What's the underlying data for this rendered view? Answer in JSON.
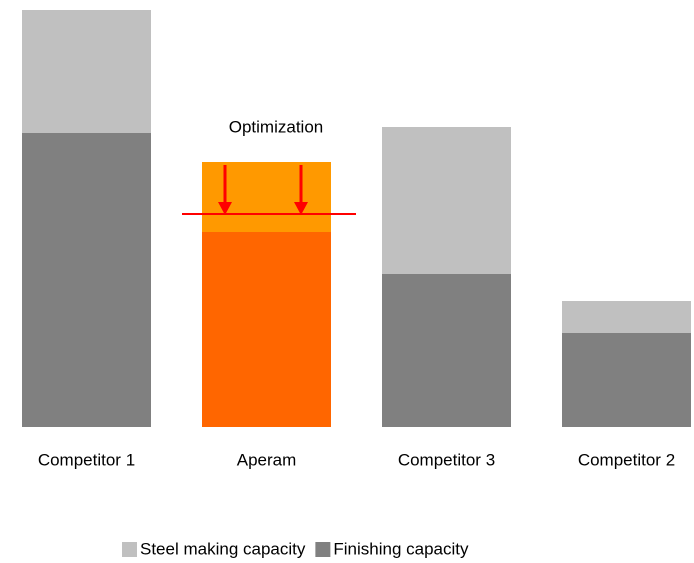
{
  "chart_data": {
    "type": "stacked_bar",
    "categories": [
      "Competitor 1",
      "Aperam",
      "Competitor 3",
      "Competitor 2"
    ],
    "series": [
      {
        "name": "Finishing capacity",
        "color": "#808080",
        "colors": [
          "#808080",
          "#ff6600",
          "#808080",
          "#808080"
        ],
        "values": [
          294,
          195,
          153,
          94
        ]
      },
      {
        "name": "Steel making capacity",
        "color": "#c0c0c0",
        "colors": [
          "#c0c0c0",
          "#ff9900",
          "#c0c0c0",
          "#c0c0c0"
        ],
        "values": [
          123,
          70,
          147,
          32
        ]
      }
    ],
    "annotation": "Optimization",
    "legend": "bottom"
  }
}
